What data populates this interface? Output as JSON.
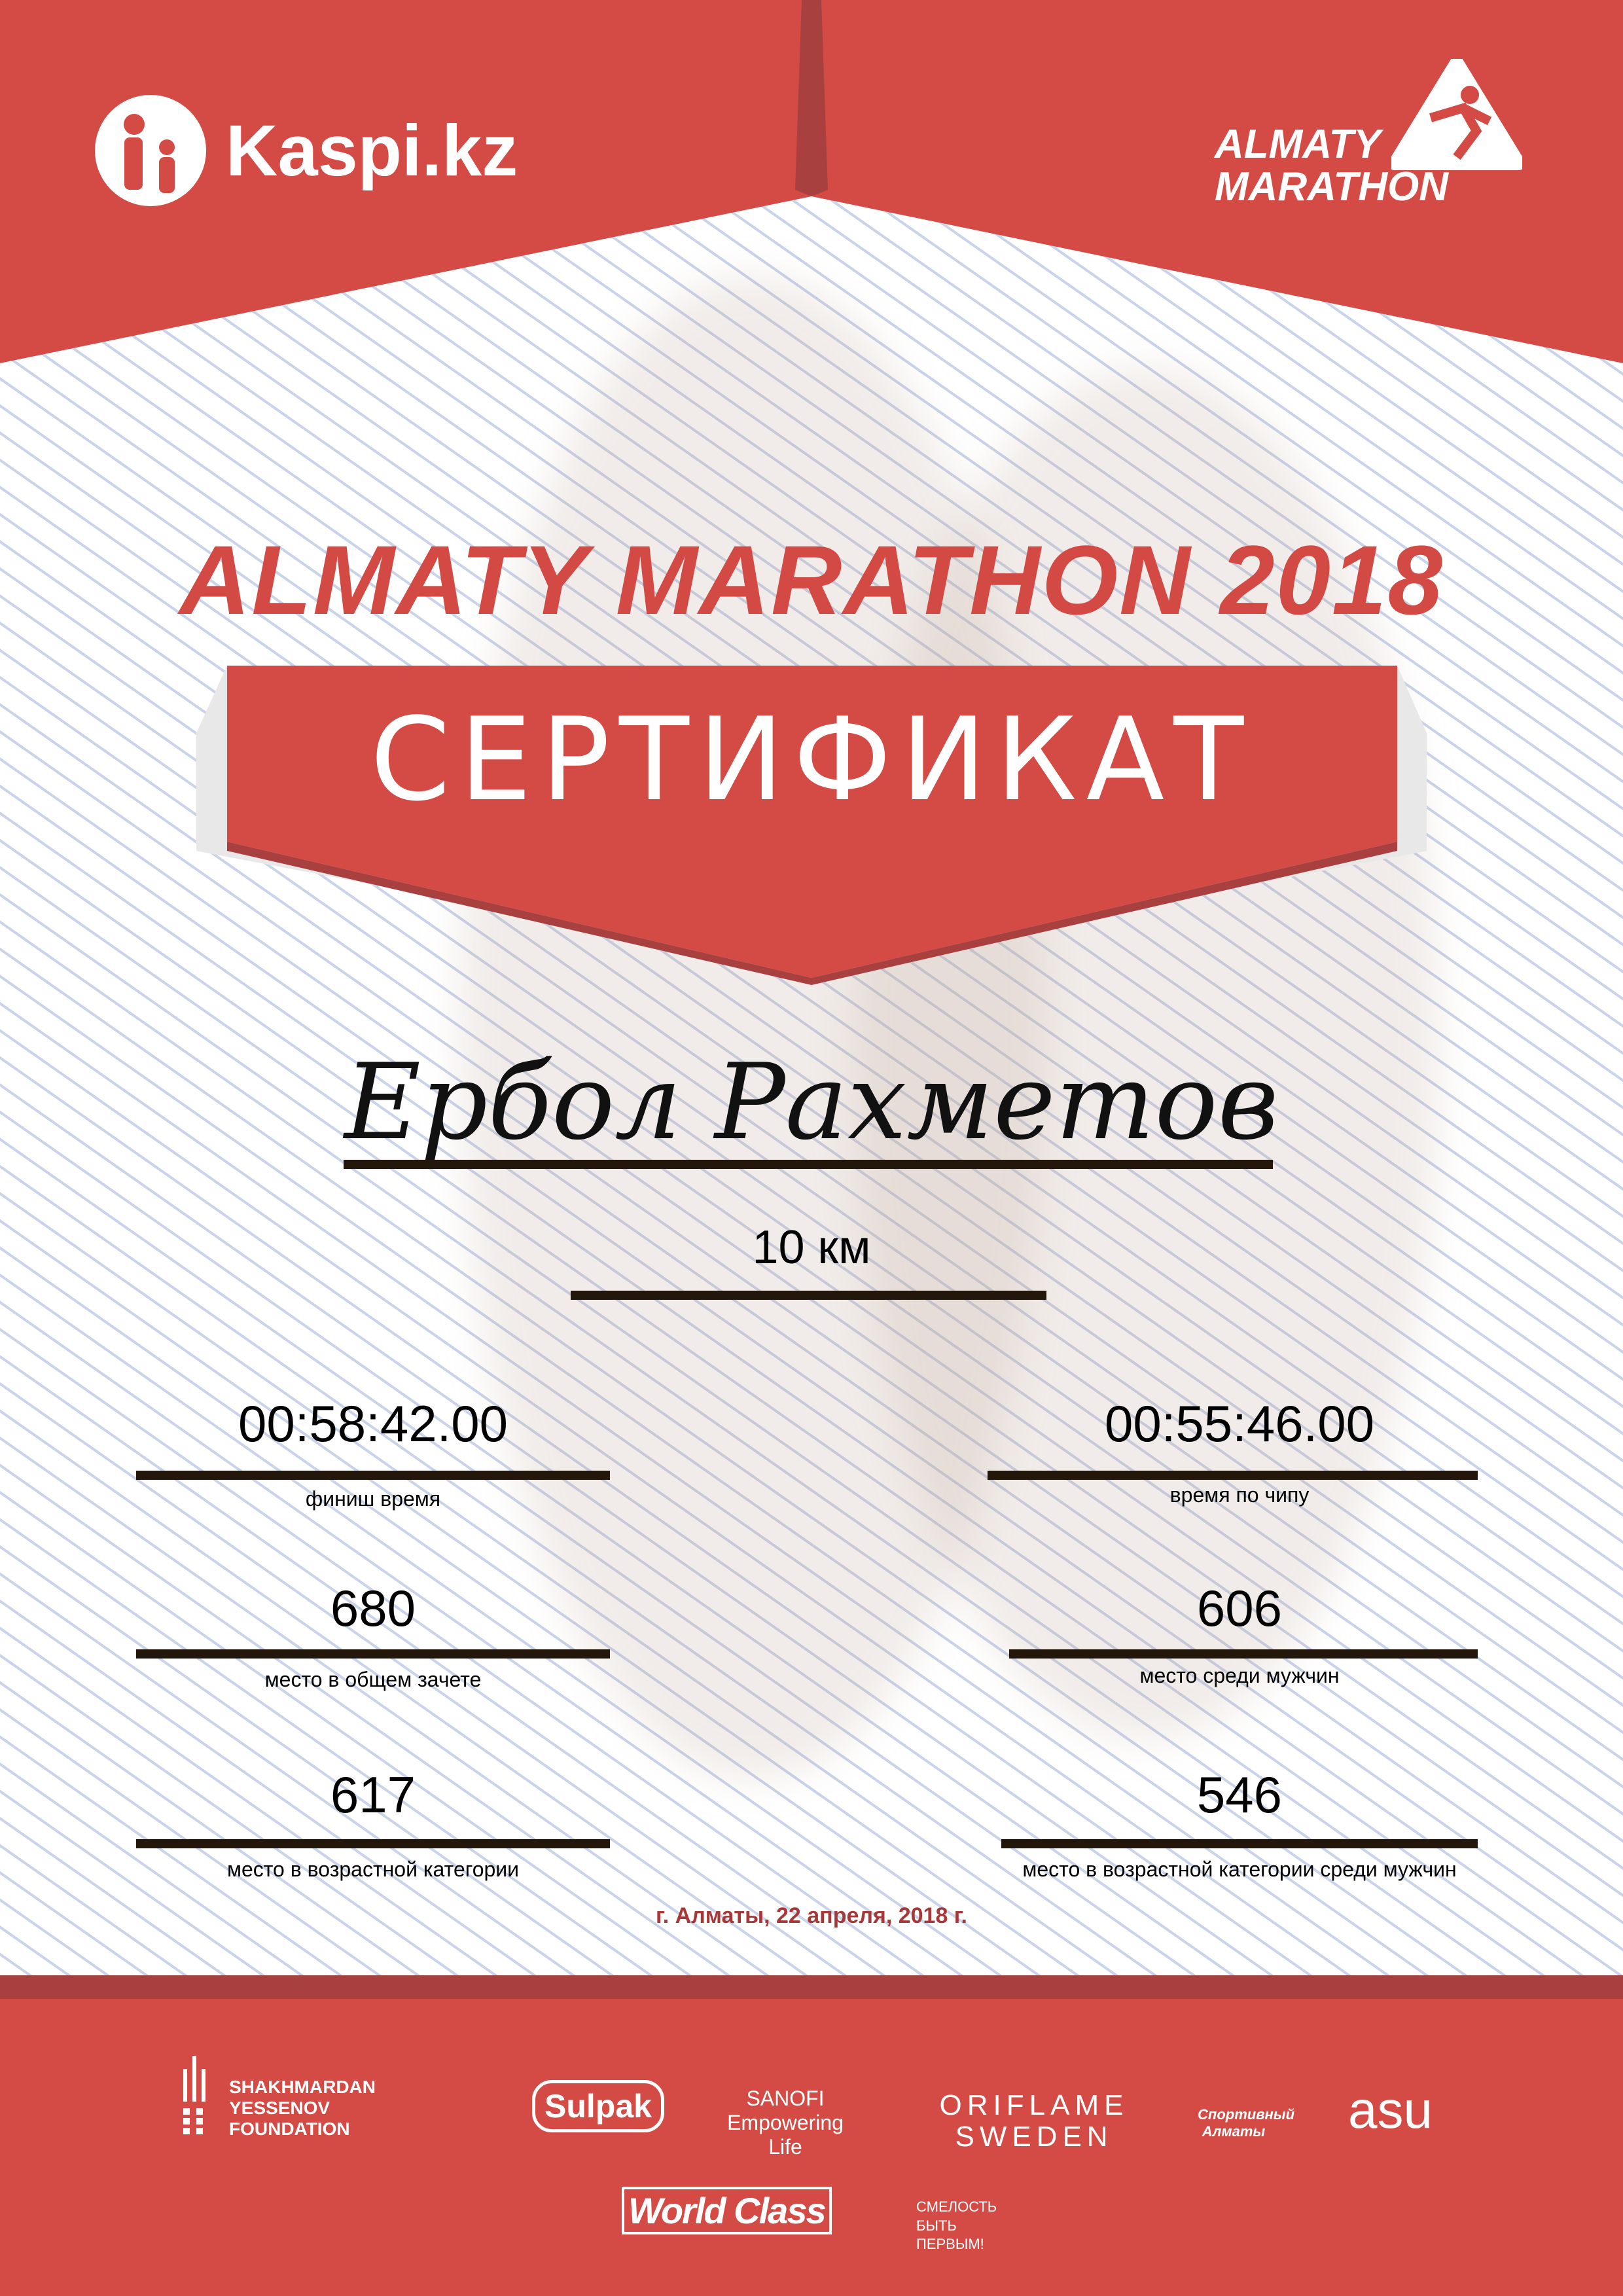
{
  "colors": {
    "accent": "#d44b45",
    "accent_dark": "#a84040",
    "text": "#000000",
    "line": "#22170a",
    "date": "#a83838"
  },
  "header": {
    "sponsor_logo": "Kaspi.kz",
    "event_logo": [
      "ALMATY",
      "MARATHON"
    ]
  },
  "title": "ALMATY MARATHON 2018",
  "certificate_label": "СЕРТИФИКАТ",
  "participant_name": "Ербол Рахметов",
  "distance": "10 км",
  "results": {
    "finish_time": {
      "value": "00:58:42.00",
      "label": "финиш время"
    },
    "chip_time": {
      "value": "00:55:46.00",
      "label": "время по чипу"
    },
    "overall_place": {
      "value": "680",
      "label": "место в общем зачете"
    },
    "gender_place": {
      "value": "606",
      "label": "место среди мужчин"
    },
    "age_place": {
      "value": "617",
      "label": "место в возрастной категории"
    },
    "age_gender_place": {
      "value": "546",
      "label": "место в возрастной категории среди мужчин"
    }
  },
  "date": "г. Алматы, 22 апреля, 2018 г.",
  "partners": [
    "SHAKHMARDAN YESSENOV FOUNDATION",
    "Sulpak",
    "SANOFI Empowering Life",
    "ORIFLAME SWEDEN",
    "Спортивный Алматы",
    "asu",
    "World Class",
    "СМЕЛОСТЬ БЫТЬ ПЕРВЫМ!"
  ]
}
